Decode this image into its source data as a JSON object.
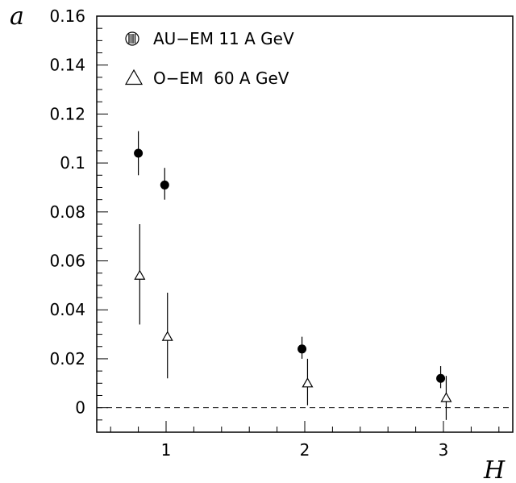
{
  "chart_data": {
    "type": "scatter",
    "title": "",
    "xlabel": "H",
    "ylabel": "a",
    "xlim": [
      0.5,
      3.5
    ],
    "ylim": [
      -0.01,
      0.16
    ],
    "x_ticks": [
      1,
      2,
      3
    ],
    "x_tick_labels": [
      "1",
      "2",
      "3"
    ],
    "y_ticks": [
      0,
      0.02,
      0.04,
      0.06,
      0.08,
      0.1,
      0.12,
      0.14,
      0.16
    ],
    "y_tick_labels": [
      "0",
      "0.02",
      "0.04",
      "0.06",
      "0.08",
      "0.1",
      "0.12",
      "0.14",
      "0.16"
    ],
    "reference_line": {
      "y": 0,
      "style": "dashed"
    },
    "legend_position": "top-left",
    "series": [
      {
        "name": "AU−EM 11 A GeV",
        "marker": "filled-circle",
        "points": [
          {
            "x": 0.8,
            "y": 0.104,
            "err_low": 0.095,
            "err_high": 0.113
          },
          {
            "x": 0.99,
            "y": 0.091,
            "err_low": 0.085,
            "err_high": 0.098
          },
          {
            "x": 1.98,
            "y": 0.024,
            "err_low": 0.02,
            "err_high": 0.029
          },
          {
            "x": 2.98,
            "y": 0.012,
            "err_low": 0.008,
            "err_high": 0.017
          }
        ]
      },
      {
        "name": "O−EM  60 A GeV",
        "marker": "open-triangle",
        "points": [
          {
            "x": 0.81,
            "y": 0.054,
            "err_low": 0.034,
            "err_high": 0.075
          },
          {
            "x": 1.01,
            "y": 0.029,
            "err_low": 0.012,
            "err_high": 0.047
          },
          {
            "x": 2.02,
            "y": 0.01,
            "err_low": 0.001,
            "err_high": 0.02
          },
          {
            "x": 3.02,
            "y": 0.004,
            "err_low": -0.005,
            "err_high": 0.013
          }
        ]
      }
    ]
  }
}
